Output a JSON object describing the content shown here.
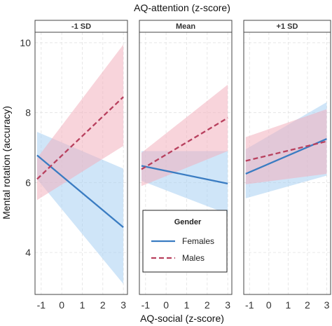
{
  "chart_data": {
    "type": "line",
    "top_title": "AQ-attention (z-score)",
    "xlabel": "AQ-social (z-score)",
    "ylabel": "Mental rotation (accuracy)",
    "xlim": [
      -1.3,
      3.2
    ],
    "ylim": [
      2.8,
      10.3
    ],
    "x_ticks": [
      -1,
      0,
      1,
      2,
      3
    ],
    "y_ticks": [
      4,
      6,
      8,
      10
    ],
    "grid": true,
    "legend": {
      "title": "Gender",
      "position": "bottom-center",
      "entries": [
        {
          "label": "Females",
          "color": "#3a7cc2",
          "dash": "solid"
        },
        {
          "label": "Males",
          "color": "#b8405e",
          "dash": "dashed"
        }
      ]
    },
    "colors": {
      "females_line": "#3a7cc2",
      "females_band": "#a7cff3",
      "males_line": "#b8405e",
      "males_band": "#f3b0bd"
    },
    "panels": [
      {
        "label": "-1 SD",
        "series": [
          {
            "name": "Females",
            "x": [
              -1.2,
              3.0
            ],
            "y": [
              6.78,
              4.72
            ],
            "lower": [
              6.1,
              3.1
            ],
            "upper": [
              7.45,
              6.4
            ]
          },
          {
            "name": "Males",
            "x": [
              -1.2,
              3.0
            ],
            "y": [
              6.1,
              8.45
            ],
            "lower": [
              5.5,
              7.05
            ],
            "upper": [
              6.7,
              9.95
            ]
          }
        ]
      },
      {
        "label": "Mean",
        "series": [
          {
            "name": "Females",
            "x": [
              -1.2,
              3.0
            ],
            "y": [
              6.48,
              5.97
            ],
            "lower": [
              6.05,
              5.1
            ],
            "upper": [
              6.9,
              6.9
            ]
          },
          {
            "name": "Males",
            "x": [
              -1.2,
              3.0
            ],
            "y": [
              6.38,
              7.85
            ],
            "lower": [
              5.9,
              6.9
            ],
            "upper": [
              6.85,
              8.8
            ]
          }
        ]
      },
      {
        "label": "+1 SD",
        "series": [
          {
            "name": "Females",
            "x": [
              -1.2,
              3.0
            ],
            "y": [
              6.25,
              7.25
            ],
            "lower": [
              5.55,
              6.2
            ],
            "upper": [
              6.95,
              8.3
            ]
          },
          {
            "name": "Males",
            "x": [
              -1.2,
              3.0
            ],
            "y": [
              6.62,
              7.18
            ],
            "lower": [
              5.95,
              6.25
            ],
            "upper": [
              7.3,
              8.1
            ]
          }
        ]
      }
    ]
  }
}
